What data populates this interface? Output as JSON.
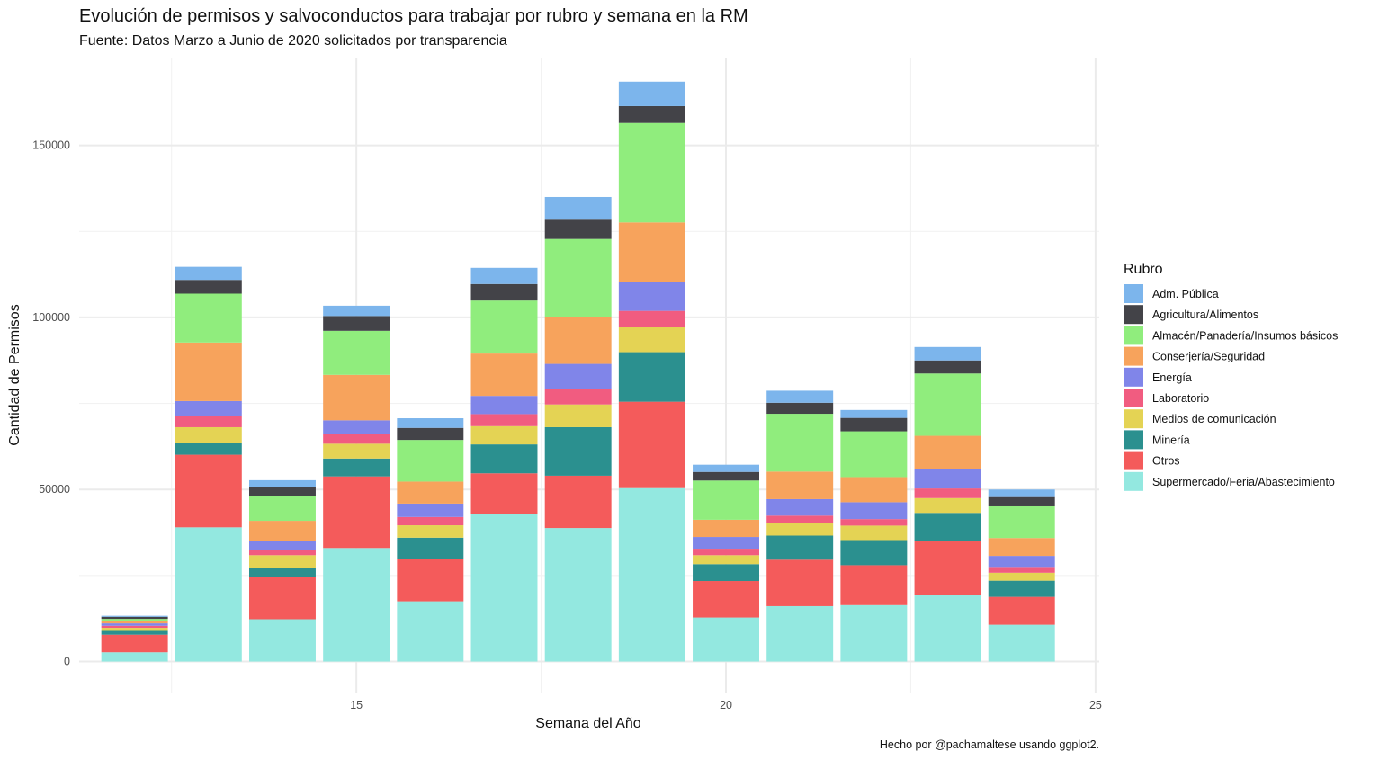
{
  "chart_data": {
    "type": "bar",
    "stacked": true,
    "title": "Evolución de permisos y salvoconductos para trabajar por rubro y semana en la RM",
    "subtitle": "Fuente: Datos Marzo a Junio de 2020 solicitados por transparencia",
    "xlabel": "Semana del Año",
    "ylabel": "Cantidad de Permisos",
    "caption": "Hecho por @pachamaltese usando ggplot2.",
    "legend_title": "Rubro",
    "legend_position": "right",
    "grid": true,
    "xlim": [
      11.25,
      25.05
    ],
    "ylim": [
      -9000,
      175500
    ],
    "x_ticks": [
      15,
      20,
      25
    ],
    "x_tick_labels": [
      "15",
      "20",
      "25"
    ],
    "x_minor_ticks": [
      12.5,
      17.5,
      22.5
    ],
    "y_ticks": [
      0,
      50000,
      100000,
      150000
    ],
    "y_tick_labels": [
      "0",
      "50000",
      "100000",
      "150000"
    ],
    "y_minor_ticks": [
      25000,
      75000,
      125000
    ],
    "x": [
      12,
      13,
      14,
      15,
      16,
      17,
      18,
      19,
      20,
      21,
      22,
      23,
      24
    ],
    "series": [
      {
        "name": "Supermercado/Feria/Abastecimiento",
        "color": "#93E8E0",
        "values": [
          2700,
          39000,
          12300,
          33000,
          17500,
          42800,
          38800,
          50400,
          12800,
          16100,
          16400,
          19300,
          10700
        ]
      },
      {
        "name": "Otros",
        "color": "#F45B5B",
        "values": [
          5100,
          21100,
          12200,
          20800,
          12300,
          11900,
          15200,
          25100,
          10600,
          13500,
          11600,
          15600,
          8100
        ]
      },
      {
        "name": "Minería",
        "color": "#2B908F",
        "values": [
          1100,
          3300,
          2800,
          5200,
          6200,
          8400,
          14100,
          14400,
          4900,
          7000,
          7300,
          8300,
          4700
        ]
      },
      {
        "name": "Medios de comunicación",
        "color": "#E4D354",
        "values": [
          900,
          4700,
          3600,
          4300,
          3600,
          5300,
          6600,
          7200,
          2600,
          3600,
          4200,
          4300,
          2300
        ]
      },
      {
        "name": "Laboratorio",
        "color": "#F15C80",
        "values": [
          600,
          3300,
          1600,
          2800,
          2400,
          3500,
          4500,
          4800,
          1900,
          2200,
          1900,
          2800,
          1700
        ]
      },
      {
        "name": "Energía",
        "color": "#8085E9",
        "values": [
          700,
          4300,
          2500,
          4000,
          3900,
          5300,
          7300,
          8300,
          3400,
          4800,
          4900,
          5700,
          3200
        ]
      },
      {
        "name": "Conserjería/Seguridad",
        "color": "#F7A35C",
        "values": [
          600,
          17000,
          5900,
          13200,
          6400,
          12300,
          13600,
          17400,
          5000,
          8000,
          7300,
          9600,
          5200
        ]
      },
      {
        "name": "Almacén/Panadería/Insumos básicos",
        "color": "#90ED7D",
        "values": [
          700,
          14200,
          7200,
          12800,
          12100,
          15400,
          22700,
          28900,
          11400,
          16800,
          13300,
          18100,
          9200
        ]
      },
      {
        "name": "Agricultura/Alimentos",
        "color": "#434348",
        "values": [
          600,
          4000,
          2600,
          4300,
          3500,
          4800,
          5600,
          4900,
          2500,
          3200,
          3900,
          3800,
          2700
        ]
      },
      {
        "name": "Adm. Pública",
        "color": "#7CB5EC",
        "values": [
          300,
          3800,
          2000,
          3000,
          2800,
          4700,
          6600,
          7100,
          2100,
          3500,
          2300,
          3900,
          2200
        ]
      }
    ]
  }
}
